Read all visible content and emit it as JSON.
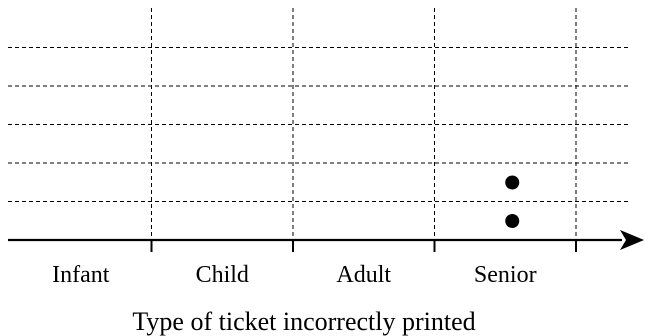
{
  "chart_data": {
    "type": "scatter",
    "subtype": "dot plot",
    "title": "",
    "xlabel": "Type of ticket incorrectly printed",
    "ylabel": "",
    "categories": [
      "Infant",
      "Child",
      "Adult",
      "Senior"
    ],
    "values": [
      0,
      0,
      0,
      2
    ],
    "grid": true,
    "grid_style": "dashed",
    "x_axis_arrow": true,
    "max_visible_count": 5,
    "colors": {
      "axis": "#000000",
      "grid": "#000000",
      "dot": "#000000"
    }
  }
}
